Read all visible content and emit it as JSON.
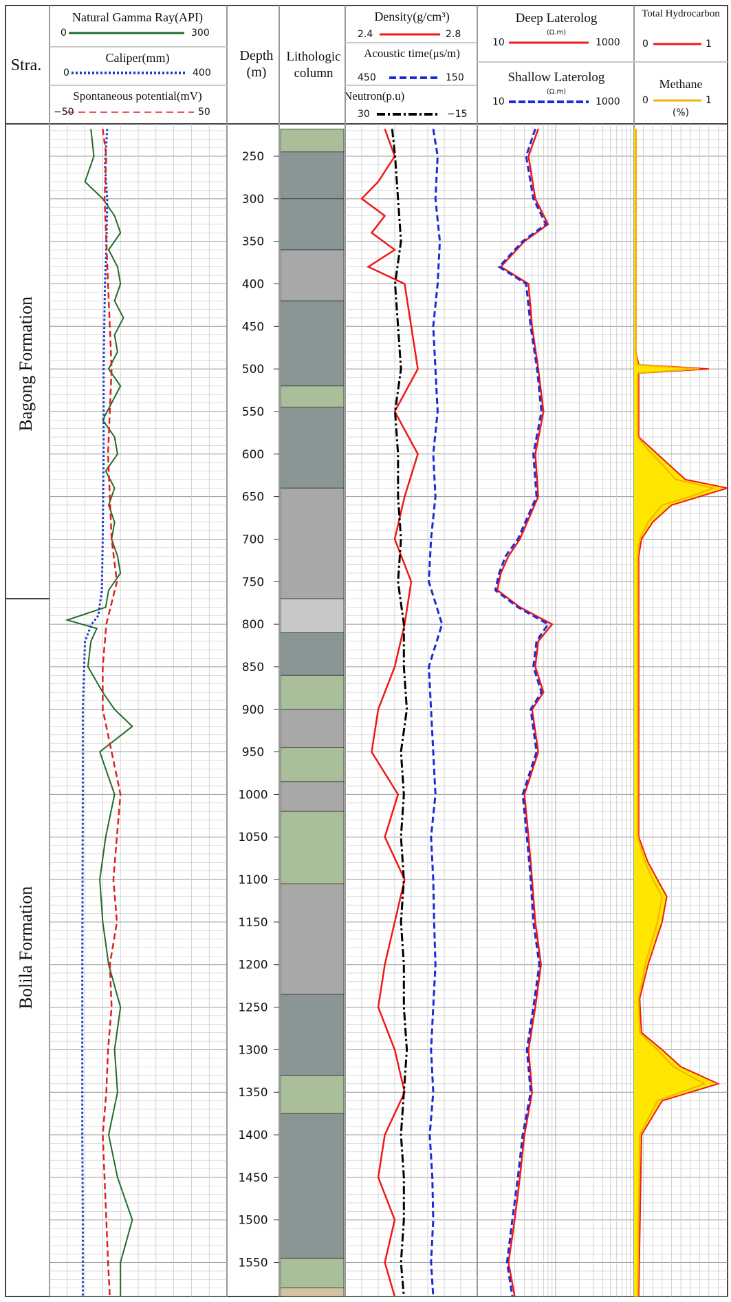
{
  "chart_data": {
    "type": "line",
    "title": "",
    "stratigraphy": {
      "header": "Stra.",
      "units": [
        {
          "name": "Bagong Formation",
          "top": 218,
          "base": 770
        },
        {
          "name": "Bolila Formation",
          "top": 770,
          "base": 1590
        }
      ]
    },
    "depth_track": {
      "label_line1": "Depth",
      "label_line2": "(m)",
      "ylim": [
        212,
        1590
      ],
      "ticks": [
        "250",
        "300",
        "350",
        "400",
        "450",
        "500",
        "550",
        "600",
        "650",
        "700",
        "750",
        "800",
        "850",
        "900",
        "950",
        "1000",
        "1050",
        "1100",
        "1150",
        "1200",
        "1250",
        "1300",
        "1350",
        "1400",
        "1450",
        "1500",
        "1550"
      ]
    },
    "lithology_track": {
      "label_line1": "Lithologic",
      "label_line2": "column",
      "intervals": [
        {
          "top": 218,
          "base": 245,
          "fill": "#a9bf9a"
        },
        {
          "top": 245,
          "base": 300,
          "fill": "#8a9696"
        },
        {
          "top": 300,
          "base": 360,
          "fill": "#8a9696"
        },
        {
          "top": 360,
          "base": 420,
          "fill": "#a8a8a8"
        },
        {
          "top": 420,
          "base": 520,
          "fill": "#8a9696"
        },
        {
          "top": 520,
          "base": 545,
          "fill": "#a9bf9a"
        },
        {
          "top": 545,
          "base": 640,
          "fill": "#8a9696"
        },
        {
          "top": 640,
          "base": 770,
          "fill": "#a8a8a8"
        },
        {
          "top": 770,
          "base": 810,
          "fill": "#c8c8c8"
        },
        {
          "top": 810,
          "base": 860,
          "fill": "#8a9696"
        },
        {
          "top": 860,
          "base": 900,
          "fill": "#a9bf9a"
        },
        {
          "top": 900,
          "base": 945,
          "fill": "#a8a8a8"
        },
        {
          "top": 945,
          "base": 985,
          "fill": "#a9bf9a"
        },
        {
          "top": 985,
          "base": 1020,
          "fill": "#a8a8a8"
        },
        {
          "top": 1020,
          "base": 1105,
          "fill": "#a9bf9a"
        },
        {
          "top": 1105,
          "base": 1235,
          "fill": "#a8a8a8"
        },
        {
          "top": 1235,
          "base": 1330,
          "fill": "#8a9696"
        },
        {
          "top": 1330,
          "base": 1375,
          "fill": "#a9bf9a"
        },
        {
          "top": 1375,
          "base": 1545,
          "fill": "#8a9696"
        },
        {
          "top": 1545,
          "base": 1580,
          "fill": "#a9bf9a"
        },
        {
          "top": 1580,
          "base": 1590,
          "fill": "#d4c3a0"
        }
      ]
    },
    "tracks": [
      {
        "curves": [
          {
            "name": "Natural Gamma Ray(API)",
            "min": "0",
            "max": "300",
            "color": "#1f6b2a",
            "style": "solid",
            "range": [
              0,
              300
            ],
            "depth": [
              218,
              250,
              280,
              300,
              320,
              340,
              360,
              380,
              400,
              420,
              440,
              460,
              480,
              500,
              520,
              540,
              560,
              580,
              600,
              620,
              640,
              660,
              680,
              700,
              720,
              740,
              760,
              780,
              795,
              805,
              820,
              850,
              880,
              900,
              920,
              950,
              980,
              1000,
              1050,
              1100,
              1150,
              1200,
              1250,
              1300,
              1350,
              1400,
              1450,
              1500,
              1550,
              1590
            ],
            "value": [
              70,
              75,
              60,
              90,
              110,
              120,
              100,
              115,
              120,
              110,
              125,
              110,
              115,
              100,
              120,
              105,
              90,
              110,
              115,
              95,
              110,
              100,
              110,
              105,
              115,
              120,
              100,
              95,
              30,
              80,
              70,
              65,
              90,
              110,
              140,
              85,
              100,
              110,
              95,
              85,
              90,
              100,
              120,
              110,
              115,
              100,
              115,
              140,
              120,
              120
            ]
          },
          {
            "name": "Caliper(mm)",
            "min": "0",
            "max": "400",
            "color": "#1d3fc4",
            "style": "dotted",
            "range": [
              0,
              400
            ],
            "depth": [
              218,
              260,
              300,
              360,
              400,
              500,
              600,
              700,
              760,
              790,
              800,
              820,
              900,
              1000,
              1200,
              1400,
              1500,
              1590
            ],
            "value": [
              130,
              125,
              130,
              128,
              125,
              122,
              122,
              120,
              118,
              110,
              95,
              80,
              75,
              75,
              74,
              74,
              75,
              75
            ]
          },
          {
            "name": "Spontaneous potential(mV)",
            "min": "−50",
            "max": "50",
            "color": "#e02020",
            "style": "dashed",
            "range": [
              -50,
              50
            ],
            "depth": [
              218,
              250,
              300,
              350,
              400,
              450,
              500,
              550,
              600,
              650,
              700,
              750,
              800,
              850,
              900,
              950,
              1000,
              1050,
              1100,
              1150,
              1200,
              1250,
              1300,
              1350,
              1400,
              1450,
              1500,
              1550,
              1590
            ],
            "value": [
              -20,
              -18,
              -19,
              -18,
              -17,
              -16,
              -15,
              -16,
              -17,
              -16,
              -15,
              -12,
              -18,
              -20,
              -20,
              -15,
              -10,
              -12,
              -14,
              -12,
              -16,
              -15,
              -17,
              -18,
              -20,
              -19,
              -18,
              -17,
              -16
            ]
          }
        ]
      },
      {
        "curves": [
          {
            "name": "Density(g/cm³)",
            "min": "2.4",
            "max": "2.8",
            "color": "#f01818",
            "style": "solid",
            "range": [
              2.4,
              2.8
            ],
            "depth": [
              218,
              250,
              280,
              300,
              320,
              340,
              360,
              380,
              400,
              450,
              500,
              550,
              600,
              650,
              700,
              750,
              800,
              850,
              900,
              950,
              1000,
              1050,
              1100,
              1150,
              1200,
              1250,
              1300,
              1350,
              1400,
              1450,
              1500,
              1550,
              1590
            ],
            "value": [
              2.52,
              2.55,
              2.5,
              2.45,
              2.52,
              2.48,
              2.55,
              2.47,
              2.58,
              2.6,
              2.62,
              2.55,
              2.62,
              2.58,
              2.55,
              2.6,
              2.58,
              2.55,
              2.5,
              2.48,
              2.56,
              2.52,
              2.58,
              2.55,
              2.52,
              2.5,
              2.55,
              2.58,
              2.52,
              2.5,
              2.55,
              2.52,
              2.55
            ]
          },
          {
            "name": "Acoustic time(μs/m)",
            "min": "450",
            "max": "150",
            "color": "#1d2ad8",
            "style": "dashed",
            "range": [
              450,
              150
            ],
            "depth": [
              218,
              250,
              300,
              350,
              400,
              450,
              500,
              550,
              600,
              650,
              700,
              750,
              800,
              850,
              900,
              950,
              1000,
              1050,
              1100,
              1150,
              1200,
              1250,
              1300,
              1350,
              1400,
              1450,
              1500,
              1550,
              1590
            ],
            "value": [
              250,
              240,
              245,
              235,
              240,
              250,
              245,
              240,
              250,
              245,
              255,
              260,
              230,
              260,
              255,
              250,
              245,
              255,
              250,
              248,
              245,
              250,
              255,
              250,
              258,
              252,
              250,
              255,
              250
            ]
          },
          {
            "name": "Neutron(p.u)",
            "min": "30",
            "max": "−15",
            "color": "#000000",
            "style": "dashdot",
            "range": [
              30,
              -15
            ],
            "depth": [
              218,
              250,
              300,
              350,
              400,
              450,
              500,
              550,
              600,
              650,
              700,
              750,
              800,
              850,
              900,
              950,
              1000,
              1050,
              1100,
              1150,
              1200,
              1250,
              1300,
              1350,
              1400,
              1450,
              1500,
              1550,
              1590
            ],
            "value": [
              14,
              13,
              12,
              11,
              13,
              12,
              11,
              13,
              12,
              12,
              11,
              12,
              10,
              10,
              9,
              11,
              10,
              11,
              10,
              11,
              10,
              10,
              9,
              10,
              11,
              10,
              10,
              11,
              10
            ]
          }
        ]
      },
      {
        "curves": [
          {
            "name": "Deep Laterolog",
            "unit": "(Ω.m)",
            "min": "10",
            "max": "1000",
            "color": "#f01818",
            "style": "solid",
            "range": [
              10,
              1000
            ],
            "scale": "log",
            "depth": [
              218,
              250,
              300,
              330,
              350,
              380,
              400,
              450,
              500,
              550,
              600,
              650,
              700,
              720,
              740,
              760,
              780,
              800,
              820,
              850,
              880,
              900,
              950,
              1000,
              1050,
              1100,
              1150,
              1200,
              1250,
              1300,
              1350,
              1400,
              1450,
              1500,
              1550,
              1590
            ],
            "value": [
              60,
              45,
              55,
              80,
              40,
              20,
              45,
              50,
              60,
              70,
              55,
              60,
              35,
              25,
              20,
              18,
              35,
              90,
              60,
              55,
              70,
              50,
              60,
              40,
              45,
              50,
              55,
              65,
              55,
              45,
              50,
              40,
              35,
              30,
              25,
              30
            ]
          },
          {
            "name": "Shallow Laterolog",
            "unit": "(Ω.m)",
            "min": "10",
            "max": "1000",
            "color": "#1d2ad8",
            "style": "dashed",
            "range": [
              10,
              1000
            ],
            "scale": "log",
            "depth": [
              218,
              250,
              300,
              330,
              350,
              380,
              400,
              450,
              500,
              550,
              600,
              650,
              700,
              720,
              740,
              760,
              780,
              800,
              820,
              850,
              880,
              900,
              950,
              1000,
              1050,
              1100,
              1150,
              1200,
              1250,
              1300,
              1350,
              1400,
              1450,
              1500,
              1550,
              1590
            ],
            "value": [
              55,
              42,
              52,
              75,
              38,
              19,
              42,
              48,
              58,
              66,
              52,
              57,
              33,
              23,
              19,
              17,
              33,
              80,
              57,
              52,
              66,
              48,
              57,
              38,
              43,
              48,
              52,
              62,
              52,
              43,
              48,
              38,
              33,
              28,
              24,
              28
            ]
          }
        ]
      },
      {
        "curves": [
          {
            "name": "Total Hydrocarbon",
            "min": "0",
            "max": "1",
            "color": "#f01818",
            "style": "solid",
            "range": [
              0,
              1
            ],
            "fill": "#ffe600",
            "depth": [
              218,
              480,
              495,
              500,
              505,
              520,
              580,
              595,
              610,
              630,
              640,
              650,
              660,
              680,
              700,
              720,
              800,
              1050,
              1080,
              1100,
              1120,
              1150,
              1200,
              1240,
              1280,
              1300,
              1320,
              1340,
              1360,
              1400,
              1590
            ],
            "value": [
              0.02,
              0.02,
              0.05,
              0.8,
              0.05,
              0.05,
              0.05,
              0.2,
              0.35,
              0.55,
              1.0,
              0.7,
              0.4,
              0.2,
              0.08,
              0.05,
              0.05,
              0.05,
              0.15,
              0.25,
              0.35,
              0.3,
              0.15,
              0.06,
              0.08,
              0.3,
              0.5,
              0.9,
              0.3,
              0.08,
              0.05
            ]
          },
          {
            "name": "Methane",
            "min": "0",
            "max": "1",
            "unit": "(%)",
            "color": "#f5b000",
            "style": "solid",
            "range": [
              0,
              1
            ],
            "depth": [
              218,
              480,
              495,
              500,
              505,
              520,
              580,
              595,
              610,
              630,
              640,
              650,
              660,
              680,
              700,
              720,
              800,
              1050,
              1080,
              1100,
              1120,
              1150,
              1200,
              1240,
              1280,
              1300,
              1320,
              1340,
              1360,
              1400,
              1590
            ],
            "value": [
              0.02,
              0.02,
              0.04,
              0.7,
              0.04,
              0.04,
              0.04,
              0.15,
              0.28,
              0.45,
              0.85,
              0.6,
              0.3,
              0.15,
              0.06,
              0.04,
              0.04,
              0.04,
              0.12,
              0.2,
              0.3,
              0.25,
              0.12,
              0.05,
              0.06,
              0.25,
              0.42,
              0.75,
              0.25,
              0.06,
              0.04
            ]
          }
        ]
      }
    ]
  },
  "palette": {
    "frame": "#444444",
    "grid_light": "#c8c8c8",
    "grid_dark": "#999999"
  }
}
